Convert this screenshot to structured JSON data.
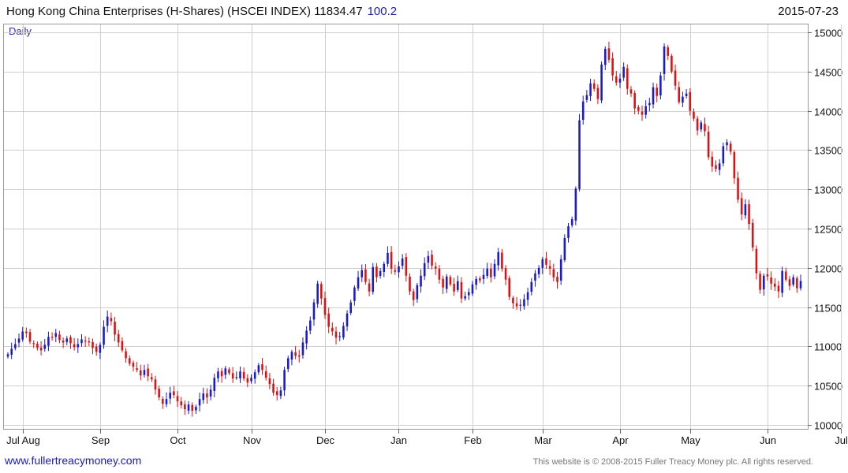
{
  "header": {
    "title": "Hong Kong China Enterprises (H-Shares) (HSCEI INDEX) 11834.47",
    "change": "100.2",
    "date": "2015-07-23",
    "period": "Daily"
  },
  "footer": {
    "site": "www.fullertreacymoney.com",
    "copyright": "This website is © 2008-2015 Fuller Treacy Money plc. All rights reserved."
  },
  "colors": {
    "up": "#1a1acc",
    "down": "#dd1111",
    "grid": "#cfcfcf",
    "frame": "#9a9a9a"
  },
  "chart_data": {
    "type": "candlestick",
    "title": "Hong Kong China Enterprises (H-Shares) (HSCEI INDEX) 11834.47",
    "ylim": [
      9950,
      15100
    ],
    "y_ticks": [
      10000,
      10500,
      11000,
      11500,
      12000,
      12500,
      13000,
      13500,
      14000,
      14500,
      15000
    ],
    "y_axis_side": "right",
    "x_ticks": [
      "Jul Aug",
      "Sep",
      "Oct",
      "Nov",
      "Dec",
      "Jan",
      "Feb",
      "Mar",
      "Apr",
      "May",
      "Jun",
      "Jul"
    ],
    "x_tick_index": [
      4,
      25,
      46,
      66,
      86,
      106,
      126,
      145,
      166,
      185,
      206,
      226
    ],
    "grid": "on",
    "series": [
      {
        "closes": [
          10900,
          10970,
          11030,
          11100,
          11190,
          11170,
          11060,
          11040,
          10980,
          10950,
          11020,
          11120,
          11110,
          11170,
          11080,
          11050,
          11100,
          11040,
          10990,
          11030,
          11090,
          11070,
          11050,
          10980,
          10930,
          11020,
          11250,
          11380,
          11320,
          11150,
          11050,
          10950,
          10850,
          10780,
          10740,
          10700,
          10630,
          10700,
          10620,
          10580,
          10450,
          10350,
          10270,
          10330,
          10410,
          10380,
          10300,
          10250,
          10200,
          10260,
          10180,
          10230,
          10330,
          10400,
          10350,
          10450,
          10600,
          10680,
          10620,
          10720,
          10660,
          10590,
          10610,
          10680,
          10590,
          10540,
          10600,
          10670,
          10760,
          10700,
          10600,
          10520,
          10410,
          10380,
          10440,
          10700,
          10850,
          10930,
          10880,
          10870,
          11050,
          11200,
          11330,
          11560,
          11800,
          11610,
          11400,
          11250,
          11190,
          11110,
          11130,
          11260,
          11420,
          11560,
          11750,
          11880,
          11970,
          11820,
          11700,
          12010,
          11880,
          11960,
          12050,
          12190,
          11990,
          11950,
          12020,
          12120,
          11900,
          11700,
          11590,
          11780,
          11900,
          12060,
          12150,
          12030,
          11990,
          11850,
          11750,
          11890,
          11790,
          11700,
          11830,
          11610,
          11640,
          11690,
          11790,
          11860,
          11840,
          11910,
          11990,
          11880,
          12050,
          12200,
          11990,
          11850,
          11630,
          11550,
          11510,
          11530,
          11600,
          11690,
          11820,
          11930,
          12000,
          12110,
          12040,
          11990,
          11880,
          11820,
          12110,
          12380,
          12530,
          12620,
          13010,
          13880,
          14120,
          14200,
          14350,
          14280,
          14150,
          14590,
          14790,
          14650,
          14450,
          14360,
          14410,
          14560,
          14280,
          14220,
          14030,
          14000,
          13950,
          14060,
          14100,
          14300,
          14190,
          14450,
          14820,
          14700,
          14500,
          14320,
          14110,
          14180,
          14220,
          14000,
          13900,
          13750,
          13850,
          13740,
          13410,
          13290,
          13260,
          13330,
          13550,
          13600,
          13480,
          13140,
          12870,
          12680,
          12810,
          12560,
          12260,
          11930,
          11720,
          11900,
          11890,
          11800,
          11760,
          11700,
          11960,
          11850,
          11770,
          11880,
          11740,
          11834
        ],
        "values_note": "daily closes, oldest first"
      }
    ]
  }
}
